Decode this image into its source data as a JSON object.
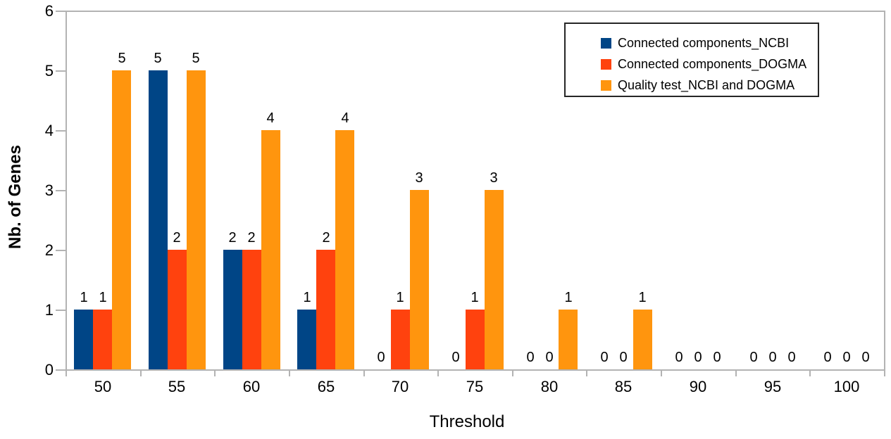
{
  "chart_data": {
    "type": "bar",
    "title": "",
    "xlabel": "Threshold",
    "ylabel": "Nb. of Genes",
    "categories": [
      "50",
      "55",
      "60",
      "65",
      "70",
      "75",
      "80",
      "85",
      "90",
      "95",
      "100"
    ],
    "yticks": [
      "0",
      "1",
      "2",
      "3",
      "4",
      "5",
      "6"
    ],
    "ylim": [
      0,
      6
    ],
    "grid": false,
    "bar_value_labels": true,
    "legend_position": "top-right",
    "series": [
      {
        "name": "Connected components_NCBI",
        "color": "#004586",
        "values": [
          1,
          5,
          2,
          1,
          0,
          0,
          0,
          0,
          0,
          0,
          0
        ]
      },
      {
        "name": "Connected components_DOGMA",
        "color": "#FF420E",
        "values": [
          1,
          2,
          2,
          2,
          1,
          1,
          0,
          0,
          0,
          0,
          0
        ]
      },
      {
        "name": "Quality test_NCBI and DOGMA",
        "color": "#FF950E",
        "values": [
          5,
          5,
          4,
          4,
          3,
          3,
          1,
          1,
          0,
          0,
          0
        ]
      }
    ],
    "colors": {
      "axis": "#b3b3b3",
      "text": "#000000",
      "legend_border": "#262626",
      "background": "#ffffff"
    }
  }
}
